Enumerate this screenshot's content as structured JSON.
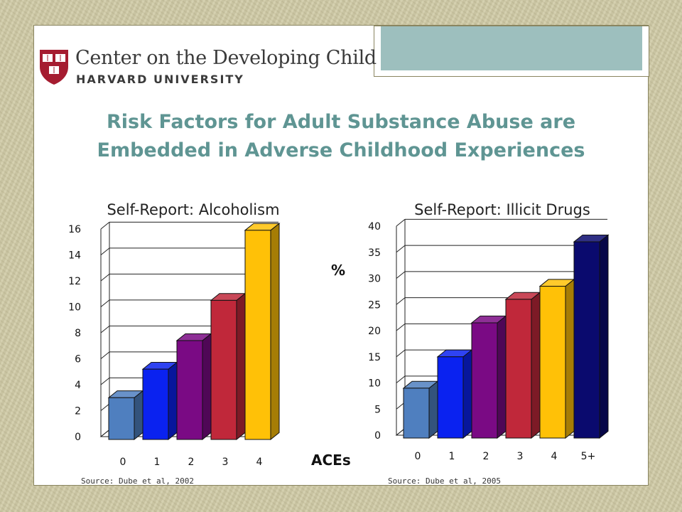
{
  "header": {
    "org_name": "Center on the Developing Child",
    "org_sub": "HARVARD UNIVERSITY"
  },
  "slide_title_line1": "Risk Factors for Adult Substance Abuse are",
  "slide_title_line2": "Embedded in Adverse Childhood Experiences",
  "shared_labels": {
    "y_unit": "%",
    "x_label": "ACEs"
  },
  "chart_data": [
    {
      "type": "bar",
      "title": "Self-Report: Alcoholism",
      "categories": [
        "0",
        "1",
        "2",
        "3",
        "4"
      ],
      "values": [
        3,
        5.2,
        7.4,
        10.5,
        15.9
      ],
      "colors": [
        "#4f7fbf",
        "#0a22f0",
        "#7a0a84",
        "#c0283a",
        "#ffc107"
      ],
      "ylim": [
        0,
        16
      ],
      "yticks": [
        0,
        2,
        4,
        6,
        8,
        10,
        12,
        14,
        16
      ],
      "grid": true,
      "source": "Source: Dube et al, 2002"
    },
    {
      "type": "bar",
      "title": "Self-Report: Illicit Drugs",
      "categories": [
        "0",
        "1",
        "2",
        "3",
        "4",
        "5+"
      ],
      "values": [
        9,
        15,
        21.5,
        26,
        28.5,
        37
      ],
      "colors": [
        "#4f7fbf",
        "#0a22f0",
        "#7a0a84",
        "#c0283a",
        "#ffc107",
        "#0a0a6e"
      ],
      "ylim": [
        0,
        40
      ],
      "yticks": [
        0,
        5,
        10,
        15,
        20,
        25,
        30,
        35,
        40
      ],
      "grid": true,
      "source": "Source: Dube et al, 2005"
    }
  ]
}
